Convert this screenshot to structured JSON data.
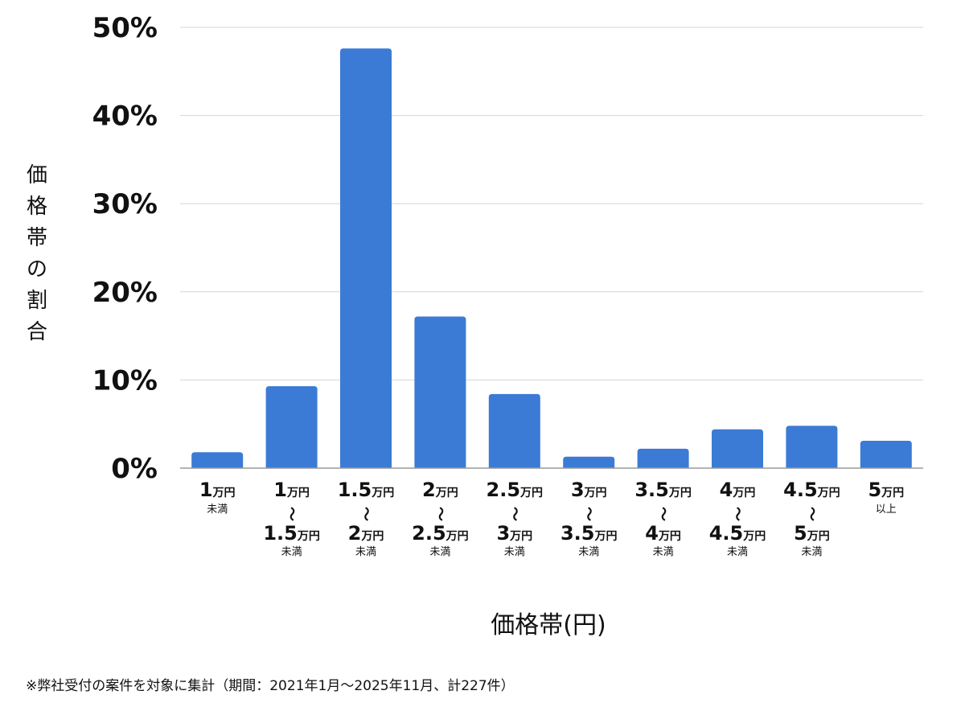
{
  "chart_data": {
    "type": "bar",
    "xlabel": "価格帯(円)",
    "ylabel": "価格帯の割合",
    "ylim": [
      0,
      50
    ],
    "yticks": [
      "0%",
      "10%",
      "20%",
      "30%",
      "40%",
      "50%"
    ],
    "grid": true,
    "bar_color": "#3b7bd6",
    "categories": [
      "1万円未満",
      "1万円〜1.5万円未満",
      "1.5万円〜2万円未満",
      "2万円〜2.5万円未満",
      "2.5万円〜3万円未満",
      "3万円〜3.5万円未満",
      "3.5万円〜4万円未満",
      "4万円〜4.5万円未満",
      "4.5万円〜5万円未満",
      "5万円以上"
    ],
    "category_labels": [
      {
        "from": "1",
        "to": null,
        "note": "未満"
      },
      {
        "from": "1",
        "to": "1.5",
        "note": "未満"
      },
      {
        "from": "1.5",
        "to": "2",
        "note": "未満"
      },
      {
        "from": "2",
        "to": "2.5",
        "note": "未満"
      },
      {
        "from": "2.5",
        "to": "3",
        "note": "未満"
      },
      {
        "from": "3",
        "to": "3.5",
        "note": "未満"
      },
      {
        "from": "3.5",
        "to": "4",
        "note": "未満"
      },
      {
        "from": "4",
        "to": "4.5",
        "note": "未満"
      },
      {
        "from": "4.5",
        "to": "5",
        "note": "未満"
      },
      {
        "from": "5",
        "to": null,
        "note": "以上"
      }
    ],
    "unit_label": "万円",
    "range_mark": "〜",
    "values": [
      1.8,
      9.3,
      47.6,
      17.2,
      8.4,
      1.3,
      2.2,
      4.4,
      4.8,
      3.1
    ]
  },
  "footnote": "※弊社受付の案件を対象に集計（期間：2021年1月〜2025年11月、計227件）"
}
